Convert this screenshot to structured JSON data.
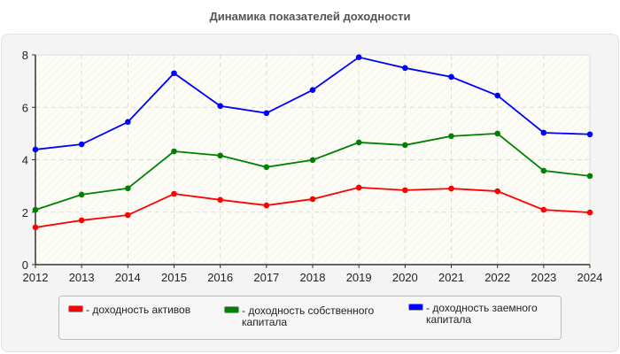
{
  "chart_data": {
    "type": "line",
    "title": "Динамика показателей доходности",
    "categories": [
      "2012",
      "2013",
      "2014",
      "2015",
      "2016",
      "2017",
      "2018",
      "2019",
      "2020",
      "2021",
      "2022",
      "2023",
      "2024"
    ],
    "ylim": [
      0,
      8
    ],
    "yticks": [
      "0",
      "2",
      "4",
      "6",
      "8"
    ],
    "grid": true,
    "legend_position": "bottom",
    "series": [
      {
        "name": "- доходность активов",
        "color": "#ff0000",
        "values": [
          1.42,
          1.69,
          1.89,
          2.7,
          2.47,
          2.26,
          2.5,
          2.94,
          2.84,
          2.9,
          2.8,
          2.09,
          1.99
        ]
      },
      {
        "name": "- доходность собственного капитала",
        "color": "#008000",
        "values": [
          2.09,
          2.67,
          2.91,
          4.32,
          4.16,
          3.72,
          3.99,
          4.66,
          4.56,
          4.9,
          5.0,
          3.58,
          3.38
        ]
      },
      {
        "name": "- доходность заемного капитала",
        "color": "#0000ff",
        "values": [
          4.39,
          4.59,
          5.44,
          7.3,
          6.05,
          5.78,
          6.66,
          7.91,
          7.5,
          7.16,
          6.45,
          5.03,
          4.97
        ]
      }
    ]
  }
}
